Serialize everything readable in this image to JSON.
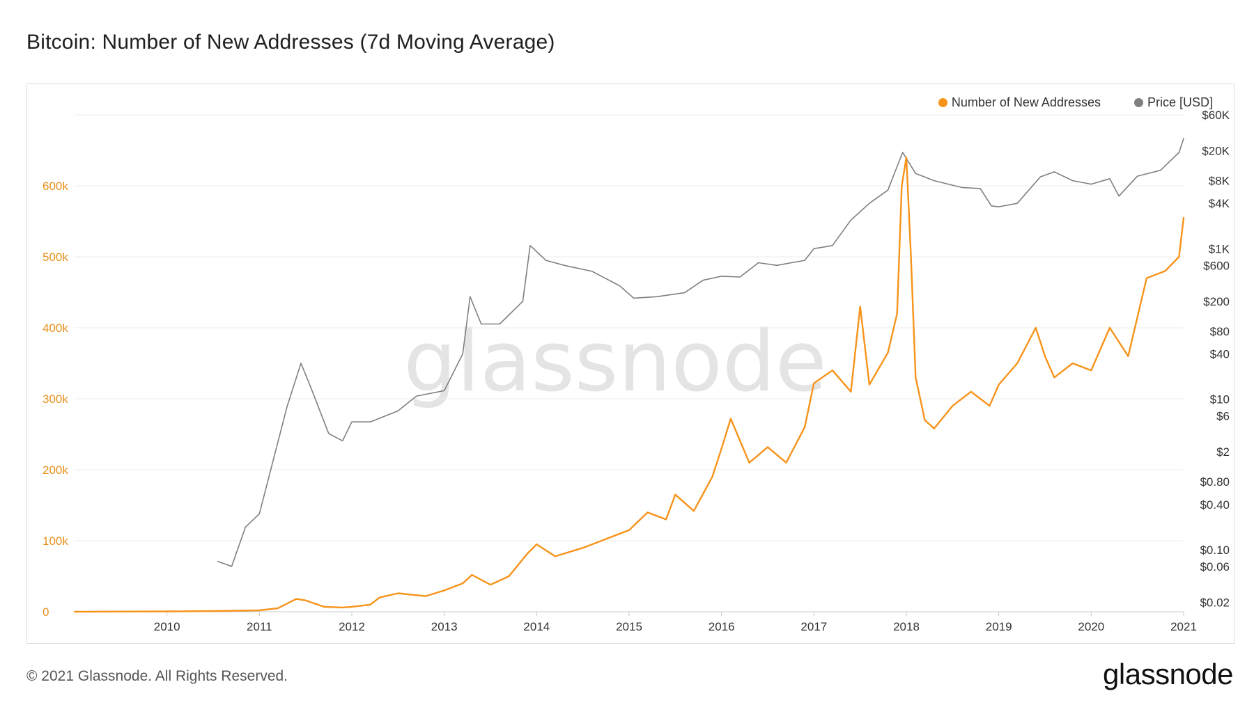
{
  "title": "Bitcoin: Number of New Addresses (7d Moving Average)",
  "footer": {
    "copyright": "© 2021 Glassnode. All Rights Reserved.",
    "logo_text": "glassnode"
  },
  "watermark": "glassnode",
  "colors": {
    "addresses": "#f7931a",
    "price": "#7f7f7f",
    "axis_left": "#e8911e",
    "grid": "#ececec"
  },
  "chart_data": {
    "type": "line",
    "x_ticks": [
      "2010",
      "2011",
      "2012",
      "2013",
      "2014",
      "2015",
      "2016",
      "2017",
      "2018",
      "2019",
      "2020",
      "2021"
    ],
    "x_range": [
      2009.0,
      2021.0
    ],
    "y_left": {
      "ticks": [
        "0",
        "100k",
        "200k",
        "300k",
        "400k",
        "500k",
        "600k"
      ],
      "range": [
        0,
        700000
      ]
    },
    "y_right": {
      "scale": "log",
      "ticks": [
        "$60K",
        "$20K",
        "$8K",
        "$4K",
        "$1K",
        "$600",
        "$200",
        "$80",
        "$40",
        "$10",
        "$6",
        "$2",
        "$0.80",
        "$0.40",
        "$0.10",
        "$0.06",
        "$0.02"
      ],
      "tick_values": [
        60000,
        20000,
        8000,
        4000,
        1000,
        600,
        200,
        80,
        40,
        10,
        6,
        2,
        0.8,
        0.4,
        0.1,
        0.06,
        0.02
      ],
      "range": [
        0.015,
        60000
      ]
    },
    "legend": {
      "position": "top-right"
    },
    "series": [
      {
        "name": "Number of New Addresses",
        "axis": "left",
        "x": [
          2009.0,
          2010.0,
          2010.5,
          2011.0,
          2011.2,
          2011.4,
          2011.5,
          2011.7,
          2011.9,
          2012.0,
          2012.2,
          2012.3,
          2012.5,
          2012.8,
          2013.0,
          2013.2,
          2013.3,
          2013.5,
          2013.7,
          2013.9,
          2014.0,
          2014.2,
          2014.5,
          2014.8,
          2015.0,
          2015.2,
          2015.4,
          2015.5,
          2015.7,
          2015.9,
          2016.0,
          2016.1,
          2016.3,
          2016.5,
          2016.7,
          2016.9,
          2017.0,
          2017.2,
          2017.4,
          2017.5,
          2017.6,
          2017.8,
          2017.9,
          2017.95,
          2018.0,
          2018.05,
          2018.1,
          2018.2,
          2018.3,
          2018.5,
          2018.7,
          2018.9,
          2019.0,
          2019.2,
          2019.4,
          2019.5,
          2019.6,
          2019.8,
          2020.0,
          2020.2,
          2020.4,
          2020.6,
          2020.8,
          2020.95,
          2021.0
        ],
        "y": [
          0,
          500,
          1000,
          2000,
          5000,
          18000,
          16000,
          7000,
          6000,
          7000,
          10000,
          20000,
          26000,
          22000,
          30000,
          40000,
          52000,
          38000,
          50000,
          82000,
          95000,
          78000,
          90000,
          105000,
          115000,
          140000,
          130000,
          165000,
          142000,
          190000,
          230000,
          272000,
          210000,
          232000,
          210000,
          260000,
          322000,
          340000,
          310000,
          430000,
          320000,
          365000,
          420000,
          600000,
          640000,
          500000,
          330000,
          270000,
          258000,
          290000,
          310000,
          290000,
          320000,
          350000,
          400000,
          360000,
          330000,
          350000,
          340000,
          400000,
          360000,
          470000,
          480000,
          500000,
          555000
        ]
      },
      {
        "name": "Price [USD]",
        "axis": "right",
        "x": [
          2010.55,
          2010.7,
          2010.85,
          2011.0,
          2011.1,
          2011.3,
          2011.45,
          2011.55,
          2011.75,
          2011.9,
          2012.0,
          2012.2,
          2012.5,
          2012.7,
          2013.0,
          2013.2,
          2013.28,
          2013.4,
          2013.6,
          2013.85,
          2013.93,
          2014.1,
          2014.3,
          2014.6,
          2014.9,
          2015.05,
          2015.3,
          2015.6,
          2015.8,
          2016.0,
          2016.2,
          2016.4,
          2016.6,
          2016.9,
          2017.0,
          2017.2,
          2017.4,
          2017.6,
          2017.8,
          2017.96,
          2018.1,
          2018.3,
          2018.6,
          2018.8,
          2018.92,
          2019.0,
          2019.2,
          2019.45,
          2019.6,
          2019.8,
          2020.0,
          2020.2,
          2020.3,
          2020.5,
          2020.75,
          2020.95,
          2021.0
        ],
        "y": [
          0.07,
          0.06,
          0.2,
          0.3,
          0.9,
          8,
          30,
          15,
          3.5,
          2.8,
          5,
          5,
          7,
          11,
          13,
          40,
          230,
          100,
          100,
          200,
          1100,
          700,
          600,
          500,
          320,
          220,
          230,
          260,
          380,
          430,
          420,
          650,
          600,
          700,
          1000,
          1100,
          2400,
          4000,
          6000,
          19000,
          10000,
          8000,
          6500,
          6300,
          3700,
          3600,
          4000,
          9000,
          10500,
          8000,
          7200,
          8500,
          5000,
          9200,
          11000,
          19000,
          29000
        ]
      }
    ]
  }
}
